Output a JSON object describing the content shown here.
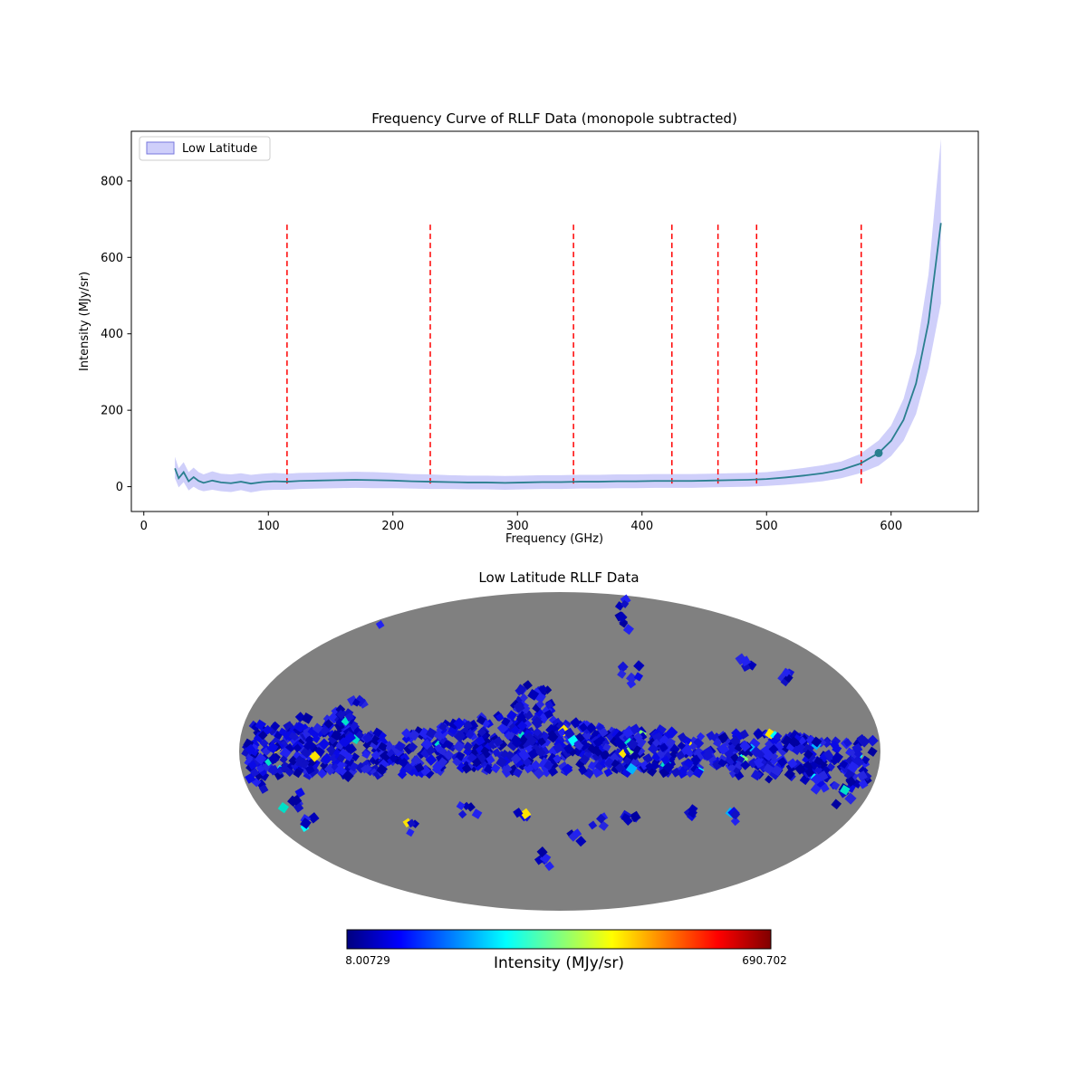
{
  "page": {
    "background": "#ffffff"
  },
  "chart_data": [
    {
      "type": "line",
      "title": "Frequency Curve of RLLF Data (monopole subtracted)",
      "xlabel": "Frequency (GHz)",
      "ylabel": "Intensity (MJy/sr)",
      "legend_label": "Low Latitude",
      "legend_position": "upper left",
      "xlim": [
        -10,
        670
      ],
      "ylim": [
        -65,
        930
      ],
      "xticks": [
        0,
        100,
        200,
        300,
        400,
        500,
        600
      ],
      "yticks": [
        0,
        200,
        400,
        600,
        800
      ],
      "grid": false,
      "line_color": "#2a7f8f",
      "band_color": "rgba(105,105,240,0.32)",
      "legend_patch_border": "#7777dd",
      "vline_color": "#ff0000",
      "vlines": [
        115,
        230,
        345,
        424,
        461,
        492,
        576
      ],
      "vline_span": [
        8,
        690
      ],
      "marker": {
        "x": 590,
        "y": 88
      },
      "x": [
        25,
        28,
        32,
        36,
        40,
        44,
        48,
        55,
        62,
        70,
        78,
        86,
        95,
        105,
        115,
        125,
        140,
        155,
        170,
        185,
        200,
        215,
        230,
        245,
        260,
        275,
        290,
        305,
        320,
        335,
        350,
        365,
        380,
        395,
        410,
        425,
        440,
        455,
        470,
        485,
        500,
        515,
        530,
        545,
        560,
        575,
        590,
        600,
        610,
        620,
        630,
        640
      ],
      "y": [
        48,
        22,
        38,
        14,
        25,
        15,
        10,
        16,
        11,
        9,
        13,
        8,
        12,
        14,
        13,
        15,
        16,
        17,
        18,
        17,
        16,
        14,
        13,
        12,
        11,
        11,
        10,
        11,
        12,
        12,
        13,
        13,
        14,
        14,
        15,
        15,
        15,
        16,
        17,
        18,
        20,
        24,
        29,
        35,
        44,
        60,
        88,
        120,
        175,
        270,
        430,
        690
      ],
      "band_lower": [
        22,
        -2,
        12,
        -10,
        0,
        -8,
        -12,
        -8,
        -12,
        -14,
        -9,
        -15,
        -10,
        -8,
        -8,
        -6,
        -5,
        -4,
        -3,
        -4,
        -4,
        -5,
        -6,
        -6,
        -7,
        -7,
        -8,
        -7,
        -6,
        -6,
        -5,
        -5,
        -4,
        -4,
        -3,
        -3,
        -3,
        -2,
        -1,
        0,
        2,
        5,
        9,
        14,
        22,
        35,
        55,
        80,
        120,
        190,
        310,
        480
      ],
      "band_upper": [
        78,
        48,
        64,
        38,
        50,
        38,
        32,
        40,
        34,
        32,
        35,
        31,
        34,
        36,
        34,
        36,
        37,
        38,
        39,
        38,
        36,
        33,
        32,
        30,
        29,
        29,
        28,
        29,
        30,
        30,
        31,
        31,
        32,
        32,
        33,
        33,
        33,
        34,
        35,
        36,
        38,
        43,
        49,
        56,
        66,
        85,
        121,
        160,
        230,
        350,
        555,
        910
      ]
    },
    {
      "type": "heatmap",
      "projection": "mollweide",
      "title": "Low Latitude RLLF Data",
      "background_color": "#808080",
      "value_min": 8.00729,
      "value_max": 690.702,
      "colorbar": {
        "title": "Intensity (MJy/sr)",
        "min_label": "8.00729",
        "max_label": "690.702",
        "colormap": [
          "#00007f",
          "#0000ff",
          "#0080ff",
          "#00ffff",
          "#80ff80",
          "#ffff00",
          "#ff8000",
          "#ff0000",
          "#7f0000"
        ]
      },
      "pixel_palette": {
        "base": [
          "#0000b8",
          "#1414d6",
          "#0a0ae6",
          "#2626e0",
          "#0000a0",
          "#2222f0",
          "#1010c4"
        ],
        "accent": [
          "#00b4ff",
          "#00e0c8",
          "#7cff6e",
          "#ffe400",
          "#00ffff"
        ],
        "accent_prob": 0.035
      },
      "clusters": [
        [
          -0.97,
          0.02,
          0.06,
          0.22,
          60
        ],
        [
          -0.86,
          0.0,
          0.08,
          0.16,
          70
        ],
        [
          -0.74,
          -0.04,
          0.08,
          0.18,
          80
        ],
        [
          -0.66,
          -0.2,
          0.05,
          0.12,
          30
        ],
        [
          -0.62,
          0.02,
          0.07,
          0.14,
          60
        ],
        [
          -0.52,
          0.05,
          0.05,
          0.1,
          25
        ],
        [
          -0.42,
          0.0,
          0.07,
          0.14,
          55
        ],
        [
          -0.3,
          -0.02,
          0.08,
          0.16,
          70
        ],
        [
          -0.18,
          -0.05,
          0.07,
          0.18,
          70
        ],
        [
          -0.08,
          -0.22,
          0.06,
          0.2,
          55
        ],
        [
          -0.06,
          0.0,
          0.08,
          0.14,
          70
        ],
        [
          0.06,
          -0.02,
          0.07,
          0.16,
          70
        ],
        [
          0.17,
          0.0,
          0.07,
          0.14,
          65
        ],
        [
          0.28,
          0.0,
          0.07,
          0.14,
          65
        ],
        [
          0.38,
          0.02,
          0.06,
          0.12,
          50
        ],
        [
          0.5,
          0.0,
          0.05,
          0.1,
          30
        ],
        [
          0.6,
          0.02,
          0.07,
          0.14,
          60
        ],
        [
          0.72,
          0.04,
          0.07,
          0.14,
          60
        ],
        [
          0.84,
          0.08,
          0.07,
          0.16,
          55
        ],
        [
          0.95,
          0.1,
          0.05,
          0.18,
          40
        ],
        [
          -0.57,
          -0.8,
          0.03,
          0.05,
          6
        ],
        [
          0.2,
          -0.86,
          0.02,
          0.1,
          8
        ],
        [
          0.22,
          -0.48,
          0.03,
          0.06,
          7
        ],
        [
          0.58,
          -0.57,
          0.02,
          0.04,
          4
        ],
        [
          0.7,
          -0.45,
          0.03,
          0.05,
          6
        ],
        [
          -0.84,
          0.3,
          0.03,
          0.06,
          6
        ],
        [
          -0.78,
          0.45,
          0.02,
          0.05,
          4
        ],
        [
          -0.47,
          0.48,
          0.02,
          0.04,
          4
        ],
        [
          -0.28,
          0.35,
          0.03,
          0.05,
          5
        ],
        [
          -0.12,
          0.42,
          0.02,
          0.04,
          4
        ],
        [
          -0.05,
          0.68,
          0.03,
          0.05,
          5
        ],
        [
          0.05,
          0.55,
          0.02,
          0.04,
          4
        ],
        [
          0.12,
          0.44,
          0.02,
          0.04,
          4
        ],
        [
          0.23,
          0.42,
          0.03,
          0.04,
          5
        ],
        [
          0.4,
          0.4,
          0.02,
          0.04,
          4
        ],
        [
          0.54,
          0.42,
          0.02,
          0.04,
          4
        ],
        [
          0.88,
          0.28,
          0.03,
          0.06,
          6
        ],
        [
          0.9,
          0.58,
          0.02,
          0.05,
          4
        ]
      ]
    }
  ]
}
